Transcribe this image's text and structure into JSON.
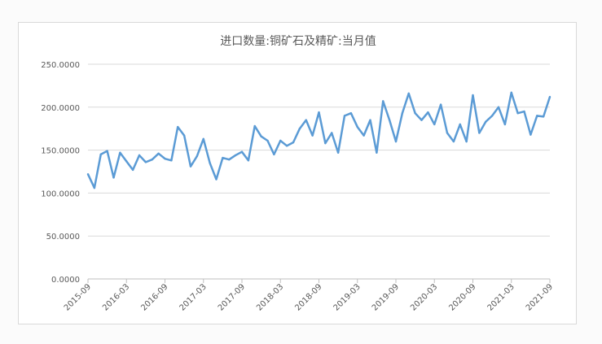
{
  "chart_data": {
    "type": "line",
    "title": "进口数量:铜矿石及精矿:当月值",
    "xlabel": "",
    "ylabel": "",
    "ylim": [
      0,
      250
    ],
    "yticks": [
      "0.0000",
      "50.0000",
      "100.0000",
      "150.0000",
      "200.0000",
      "250.0000"
    ],
    "grid": true,
    "legend": "none",
    "color": "#5b9bd5",
    "x": [
      "2015-09",
      "2015-10",
      "2015-11",
      "2015-12",
      "2016-01",
      "2016-02",
      "2016-03",
      "2016-04",
      "2016-05",
      "2016-06",
      "2016-07",
      "2016-08",
      "2016-09",
      "2016-10",
      "2016-11",
      "2016-12",
      "2017-01",
      "2017-02",
      "2017-03",
      "2017-04",
      "2017-05",
      "2017-06",
      "2017-07",
      "2017-08",
      "2017-09",
      "2017-10",
      "2017-11",
      "2017-12",
      "2018-01",
      "2018-02",
      "2018-03",
      "2018-04",
      "2018-05",
      "2018-06",
      "2018-07",
      "2018-08",
      "2018-09",
      "2018-10",
      "2018-11",
      "2018-12",
      "2019-01",
      "2019-02",
      "2019-03",
      "2019-04",
      "2019-05",
      "2019-06",
      "2019-07",
      "2019-08",
      "2019-09",
      "2019-10",
      "2019-11",
      "2019-12",
      "2020-01",
      "2020-02",
      "2020-03",
      "2020-04",
      "2020-05",
      "2020-06",
      "2020-07",
      "2020-08",
      "2020-09",
      "2020-10",
      "2020-11",
      "2020-12",
      "2021-01",
      "2021-02",
      "2021-03",
      "2021-04",
      "2021-05",
      "2021-06",
      "2021-07",
      "2021-08",
      "2021-09"
    ],
    "xtick_labels": [
      "2015-09",
      "2016-03",
      "2016-09",
      "2017-03",
      "2017-09",
      "2018-03",
      "2018-09",
      "2019-03",
      "2019-09",
      "2020-03",
      "2020-09",
      "2021-03",
      "2021-09"
    ],
    "series": [
      {
        "values": [
          122,
          106,
          145,
          149,
          118,
          147,
          137,
          127,
          144,
          136,
          139,
          146,
          140,
          138,
          177,
          167,
          131,
          143,
          163,
          135,
          116,
          141,
          139,
          144,
          148,
          138,
          178,
          166,
          161,
          145,
          161,
          155,
          159,
          175,
          185,
          167,
          194,
          158,
          170,
          147,
          190,
          193,
          177,
          167,
          185,
          147,
          207,
          185,
          160,
          193,
          216,
          193,
          185,
          194,
          180,
          203,
          170,
          160,
          180,
          160,
          214,
          170,
          183,
          190,
          200,
          180,
          217,
          193,
          195,
          168,
          190,
          189,
          212
        ]
      }
    ]
  }
}
